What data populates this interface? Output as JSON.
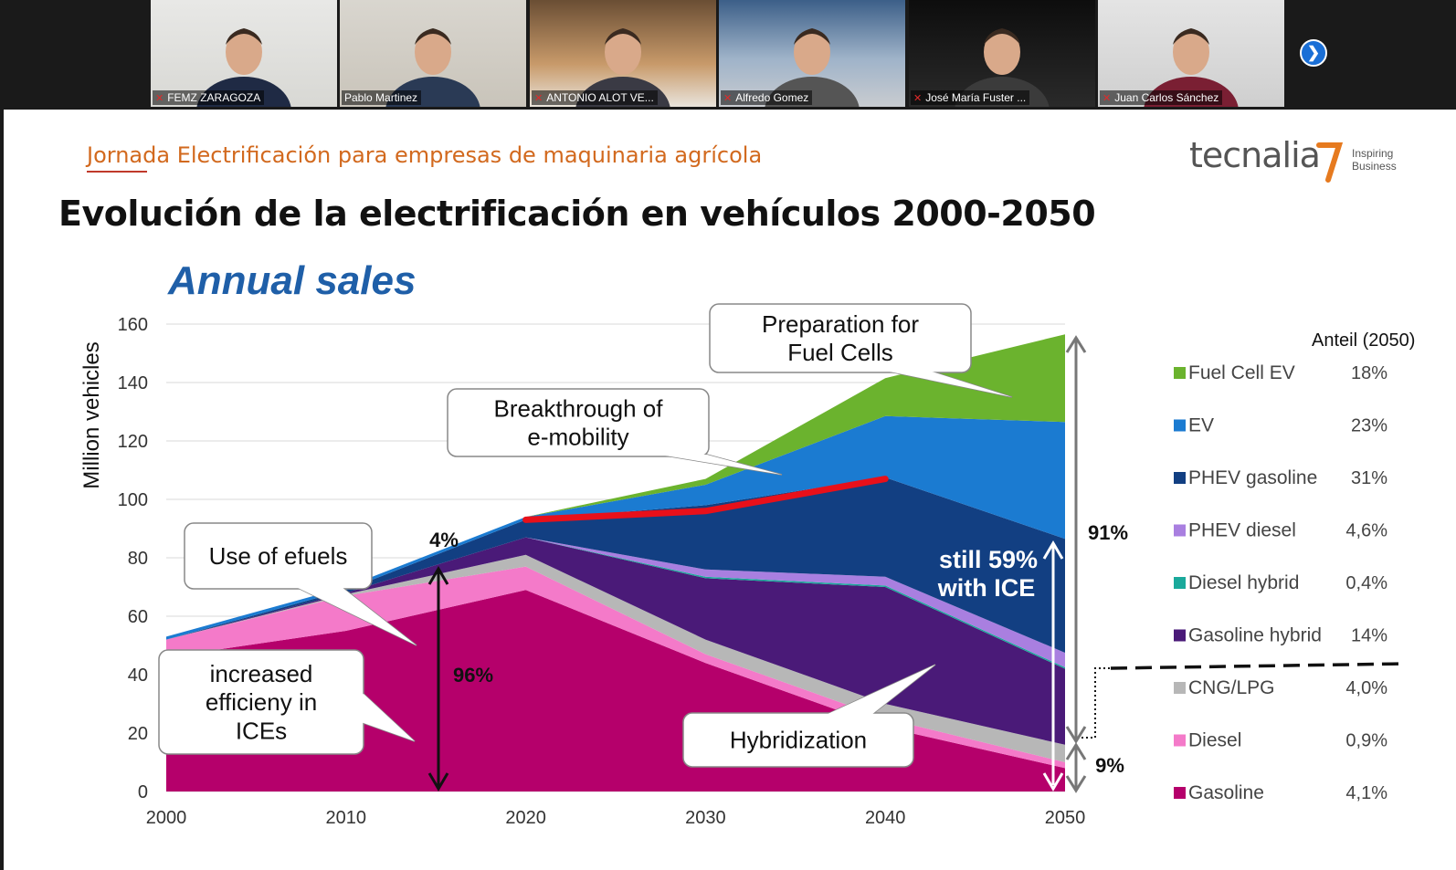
{
  "participants": [
    {
      "name": "FEMZ ZARAGOZA",
      "muted": true
    },
    {
      "name": "Pablo Martinez",
      "muted": false,
      "active": true
    },
    {
      "name": "ANTONIO ALOT VE...",
      "muted": true
    },
    {
      "name": "Alfredo Gomez",
      "muted": true
    },
    {
      "name": "José María Fuster ...",
      "muted": true
    },
    {
      "name": "Juan Carlos Sánchez",
      "muted": true
    }
  ],
  "next_icon": "chevron-right-icon",
  "mute_icon": "mic-off-icon",
  "slide": {
    "subtitle": "Jornada Electrificación para empresas de maquinaria agrícola",
    "title": "Evolución de la electrificación en vehículos 2000-2050",
    "logo_text": "tecnalia",
    "tagline_1": "Inspiring",
    "tagline_2": "Business"
  },
  "chart_data": {
    "type": "area",
    "title": "Annual sales",
    "ylabel": "Million vehicles",
    "xlabel": "",
    "x": [
      2000,
      2010,
      2020,
      2030,
      2040,
      2050
    ],
    "ylim": [
      0,
      160
    ],
    "xlim": [
      2000,
      2050
    ],
    "yticks": [
      0,
      20,
      40,
      60,
      80,
      100,
      120,
      140,
      160
    ],
    "legend_title": "Anteil (2050)",
    "legend_placement": "right",
    "series": [
      {
        "name": "Gasoline",
        "share": "4,1%",
        "color": "#b5006b",
        "values": [
          46,
          55,
          69,
          44,
          22,
          8
        ]
      },
      {
        "name": "Diesel",
        "share": "0,9%",
        "color": "#f47ac9",
        "values": [
          6,
          12,
          8,
          3,
          3,
          2
        ]
      },
      {
        "name": "CNG/LPG",
        "share": "4,0%",
        "color": "#b7b7b7",
        "values": [
          0,
          0.5,
          4,
          5,
          5,
          6
        ]
      },
      {
        "name": "Gasoline hybrid",
        "share": "14%",
        "color": "#4a1a78",
        "values": [
          0,
          0.5,
          6,
          21,
          40,
          26
        ]
      },
      {
        "name": "Diesel hybrid",
        "share": "0,4%",
        "color": "#1aa99b",
        "values": [
          0,
          0,
          0,
          0.5,
          0.5,
          0.5
        ]
      },
      {
        "name": "PHEV diesel",
        "share": "4,6%",
        "color": "#a97fe0",
        "values": [
          0,
          0,
          0,
          2.5,
          3,
          5
        ]
      },
      {
        "name": "PHEV gasoline",
        "share": "31%",
        "color": "#123f82",
        "values": [
          0,
          1,
          6,
          22,
          34,
          39
        ]
      },
      {
        "name": "EV",
        "share": "23%",
        "color": "#1b7bd1",
        "values": [
          1,
          1,
          1,
          7,
          21,
          40
        ]
      },
      {
        "name": "Fuel Cell EV",
        "share": "18%",
        "color": "#6bb32e",
        "values": [
          0,
          0,
          0,
          2,
          13,
          30
        ]
      }
    ],
    "legend": [
      {
        "label": "Fuel Cell EV",
        "value": "18%",
        "color": "#6bb32e"
      },
      {
        "label": "EV",
        "value": "23%",
        "color": "#1b7bd1"
      },
      {
        "label": "PHEV gasoline",
        "value": "31%",
        "color": "#123f82"
      },
      {
        "label": "PHEV diesel",
        "value": "4,6%",
        "color": "#a97fe0"
      },
      {
        "label": "Diesel hybrid",
        "value": "0,4%",
        "color": "#1aa99b"
      },
      {
        "label": "Gasoline hybrid",
        "value": "14%",
        "color": "#4a1a78"
      },
      {
        "label": "CNG/LPG",
        "value": "4,0%",
        "color": "#b7b7b7"
      },
      {
        "label": "Diesel",
        "value": "0,9%",
        "color": "#f47ac9"
      },
      {
        "label": "Gasoline",
        "value": "4,1%",
        "color": "#b5006b"
      }
    ],
    "red_line": {
      "x": [
        2020,
        2030,
        2040
      ],
      "y": [
        93,
        96,
        107
      ]
    },
    "annotations": {
      "callout_fuel_cells": [
        "Preparation for",
        "Fuel Cells"
      ],
      "callout_emobility": [
        "Breakthrough of",
        "e-mobility"
      ],
      "callout_efuels": [
        "Use of efuels"
      ],
      "callout_efficiency": [
        "increased",
        "efficieny in",
        "ICEs"
      ],
      "callout_hybrid": [
        "Hybridization"
      ],
      "pct_4": "4%",
      "pct_96": "96%",
      "pct_91": "91%",
      "pct_9": "9%",
      "still_ice": [
        "still 59%",
        "with ICE"
      ]
    }
  }
}
